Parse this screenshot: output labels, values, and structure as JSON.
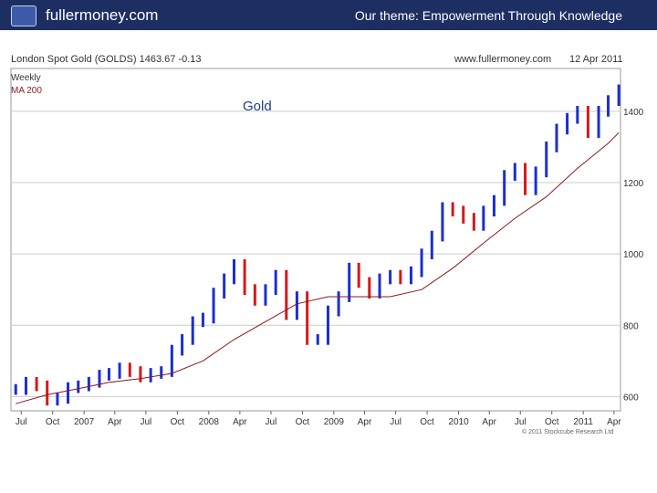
{
  "header": {
    "brand": "fullermoney.com",
    "theme": "Our theme: Empowerment Through Knowledge"
  },
  "chart_data": {
    "type": "line",
    "title": "London Spot Gold (GOLDS) 1463.67 -0.13",
    "site": "www.fullermoney.com",
    "date": "12 Apr 2011",
    "frequency": "Weekly",
    "ma_label": "MA 200",
    "annotation": "Gold",
    "copyright": "© 2011 Stockcube Research Ltd",
    "ylim": [
      560,
      1520
    ],
    "yticks": [
      600,
      800,
      1000,
      1200,
      1400
    ],
    "ytick_labels": [
      "600",
      "800",
      "1000",
      "1200",
      "1400"
    ],
    "xtick_labels": [
      "Jul",
      "Oct",
      "2007",
      "Apr",
      "Jul",
      "Oct",
      "2008",
      "Apr",
      "Jul",
      "Oct",
      "2009",
      "Apr",
      "Jul",
      "Oct",
      "2010",
      "Apr",
      "Jul",
      "Oct",
      "2011",
      "Apr"
    ],
    "grid": true,
    "colors": {
      "up": "#1a2fd0",
      "down": "#d81818",
      "ma": "#8b1a1a",
      "header": "#1d2e63"
    },
    "series": [
      {
        "name": "London Spot Gold",
        "x": [
          "2006-06",
          "2006-07",
          "2006-08",
          "2006-09",
          "2006-10",
          "2006-11",
          "2006-12",
          "2007-01",
          "2007-02",
          "2007-03",
          "2007-04",
          "2007-05",
          "2007-06",
          "2007-07",
          "2007-08",
          "2007-09",
          "2007-10",
          "2007-11",
          "2007-12",
          "2008-01",
          "2008-02",
          "2008-03",
          "2008-04",
          "2008-05",
          "2008-06",
          "2008-07",
          "2008-08",
          "2008-09",
          "2008-10",
          "2008-11",
          "2008-12",
          "2009-01",
          "2009-02",
          "2009-03",
          "2009-04",
          "2009-05",
          "2009-06",
          "2009-07",
          "2009-08",
          "2009-09",
          "2009-10",
          "2009-11",
          "2009-12",
          "2010-01",
          "2010-02",
          "2010-03",
          "2010-04",
          "2010-05",
          "2010-06",
          "2010-07",
          "2010-08",
          "2010-09",
          "2010-10",
          "2010-11",
          "2010-12",
          "2011-01",
          "2011-02",
          "2011-03",
          "2011-04"
        ],
        "values": [
          620,
          640,
          630,
          590,
          595,
          625,
          630,
          640,
          660,
          665,
          680,
          670,
          655,
          665,
          670,
          730,
          760,
          810,
          820,
          890,
          930,
          970,
          900,
          870,
          900,
          940,
          830,
          880,
          760,
          760,
          840,
          880,
          960,
          920,
          890,
          930,
          940,
          930,
          950,
          1000,
          1050,
          1130,
          1120,
          1100,
          1080,
          1120,
          1150,
          1220,
          1240,
          1180,
          1230,
          1300,
          1350,
          1380,
          1400,
          1340,
          1400,
          1430,
          1460
        ]
      },
      {
        "name": "MA 200",
        "x": [
          "2006-06",
          "2006-09",
          "2006-12",
          "2007-03",
          "2007-06",
          "2007-09",
          "2007-12",
          "2008-03",
          "2008-06",
          "2008-09",
          "2008-12",
          "2009-03",
          "2009-06",
          "2009-09",
          "2009-12",
          "2010-03",
          "2010-06",
          "2010-09",
          "2010-12",
          "2011-03",
          "2011-04"
        ],
        "values": [
          580,
          605,
          622,
          640,
          650,
          665,
          700,
          760,
          810,
          860,
          880,
          880,
          880,
          900,
          960,
          1030,
          1100,
          1160,
          1240,
          1310,
          1340
        ]
      }
    ]
  }
}
